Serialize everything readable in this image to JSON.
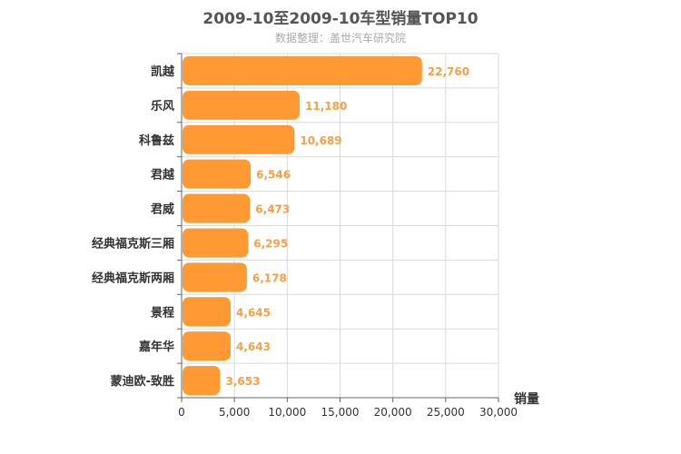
{
  "chart_data": {
    "type": "bar",
    "orientation": "horizontal",
    "title": "2009-10至2009-10车型销量TOP10",
    "subtitle": "数据整理：盖世汽车研究院",
    "xlabel": "销量",
    "ylabel": "",
    "categories": [
      "凯越",
      "乐风",
      "科鲁兹",
      "君越",
      "君威",
      "经典福克斯三厢",
      "经典福克斯两厢",
      "景程",
      "嘉年华",
      "蒙迪欧-致胜"
    ],
    "values": [
      22760,
      11180,
      10689,
      6546,
      6473,
      6295,
      6178,
      4645,
      4643,
      3653
    ],
    "data_labels": [
      "22,760",
      "11,180",
      "10,689",
      "6,546",
      "6,473",
      "6,295",
      "6,178",
      "4,645",
      "4,643",
      "3,653"
    ],
    "xlim": [
      0,
      30000
    ],
    "xticks": [
      0,
      5000,
      10000,
      15000,
      20000,
      25000,
      30000
    ],
    "xtick_labels": [
      "0",
      "5,000",
      "10,000",
      "15,000",
      "20,000",
      "25,000",
      "30,000"
    ],
    "grid": true,
    "bar_color": "#ff9933",
    "label_color": "#f5a046"
  }
}
